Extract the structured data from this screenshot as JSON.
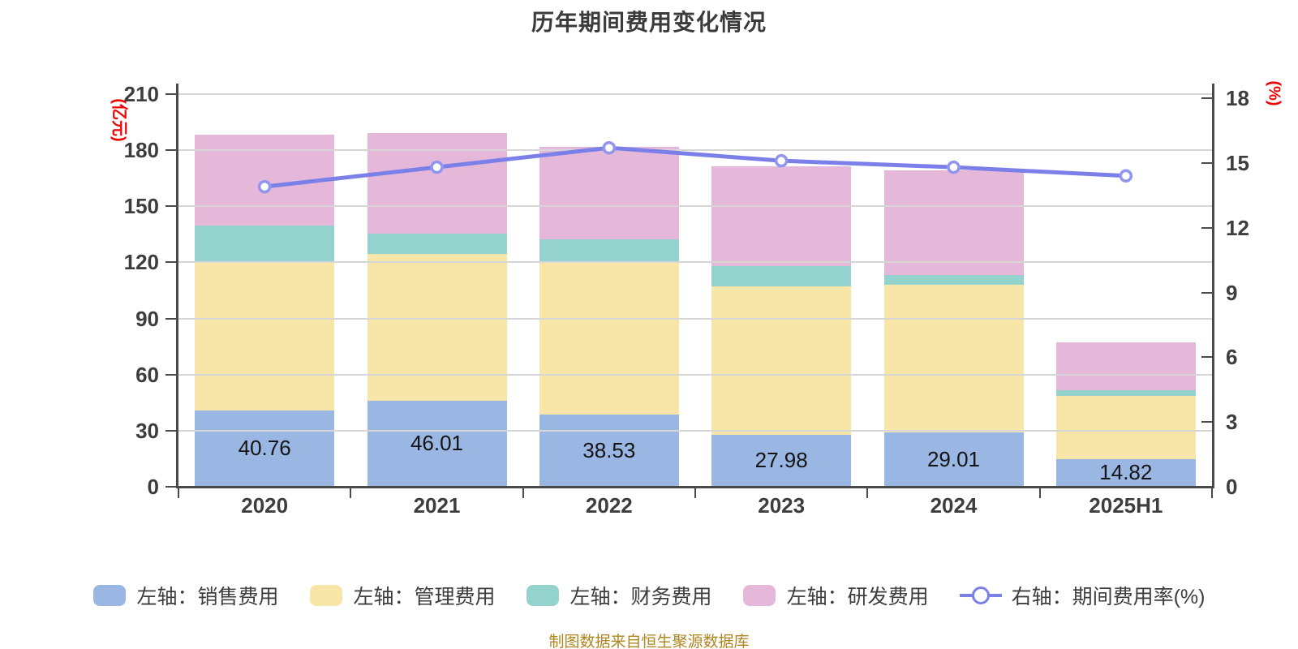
{
  "title": "历年期间费用变化情况",
  "footer": "制图数据来自恒生聚源数据库",
  "colors": {
    "sales": "#9ab6e2",
    "admin": "#f8e6a8",
    "finance": "#94d2ce",
    "rd": "#e5b8da",
    "line": "#7b80e8",
    "line_marker_fill": "#ffffff",
    "axis": "#4a4a4a",
    "grid": "#d6d6d6",
    "tick_label": "#3d3d3d",
    "unit_label": "#f00000",
    "bar_label": "#141414",
    "title_text": "#3b3b3b",
    "footer_text": "#ad8620"
  },
  "left_axis": {
    "unit": "(亿元)",
    "min": 0,
    "max": 210,
    "step": 30,
    "ticks": [
      0,
      30,
      60,
      90,
      120,
      150,
      180,
      210
    ]
  },
  "right_axis": {
    "unit": "(%)",
    "min": 0,
    "max": 18,
    "step": 3,
    "ticks": [
      0,
      3,
      6,
      9,
      12,
      15,
      18
    ]
  },
  "chart_data": {
    "type": "bar",
    "subtype": "stacked-bars-with-line-overlay",
    "title": "历年期间费用变化情况",
    "categories": [
      "2020",
      "2021",
      "2022",
      "2023",
      "2024",
      "2025H1"
    ],
    "series": [
      {
        "name": "左轴：销售费用",
        "type": "bar",
        "stack": true,
        "axis": "left",
        "color_key": "sales",
        "values": [
          40.76,
          46.01,
          38.53,
          27.98,
          29.01,
          14.82
        ],
        "show_labels": true
      },
      {
        "name": "左轴：管理费用",
        "type": "bar",
        "stack": true,
        "axis": "left",
        "color_key": "admin",
        "values": [
          80.0,
          78.4,
          81.3,
          79.3,
          79.2,
          33.7
        ]
      },
      {
        "name": "左轴：财务费用",
        "type": "bar",
        "stack": true,
        "axis": "left",
        "color_key": "finance",
        "values": [
          18.8,
          11.1,
          12.5,
          10.6,
          5.0,
          3.3
        ]
      },
      {
        "name": "左轴：研发费用",
        "type": "bar",
        "stack": true,
        "axis": "left",
        "color_key": "rd",
        "values": [
          48.6,
          53.7,
          49.6,
          53.4,
          56.0,
          25.6
        ]
      }
    ],
    "line_series": {
      "name": "右轴：期间费用率(%)",
      "type": "line",
      "axis": "right",
      "color_key": "line",
      "values": [
        13.9,
        14.8,
        15.7,
        15.1,
        14.8,
        14.4
      ]
    },
    "bar_value_labels": [
      "40.76",
      "46.01",
      "38.53",
      "27.98",
      "29.01",
      "14.82"
    ],
    "ylim_left": [
      0,
      210
    ],
    "ylim_right": [
      0,
      18
    ],
    "grid": true,
    "legend_position": "bottom",
    "xlabel": "",
    "ylabel_left": "(亿元)",
    "ylabel_right": "(%)"
  }
}
